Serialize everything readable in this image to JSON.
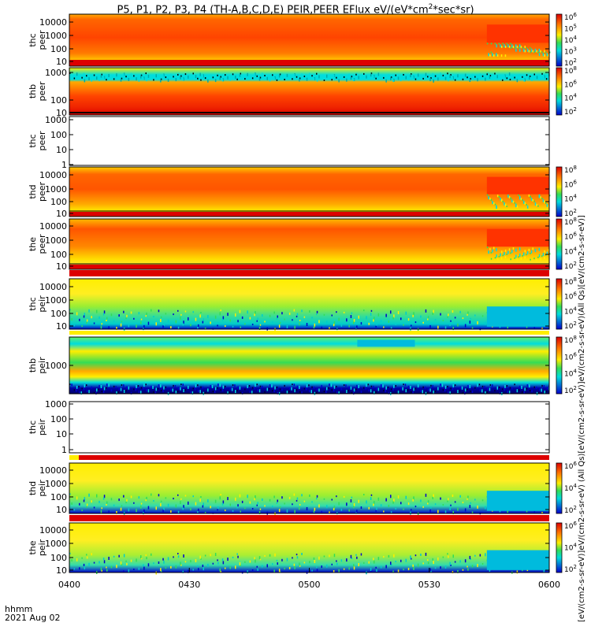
{
  "title": "P5, P1, P2, P3, P4 (TH-A,B,C,D,E) PEIR,PEER EFlux eV/(eV*cm",
  "title_sup": "2",
  "title_tail": "*sec*sr)",
  "footer": {
    "label": "hhmm",
    "date": "2021 Aug 02"
  },
  "units_label": "[eV/(cm2-s-sr-eV)]eV/(cm2-s-sr-eV) (All Qs)[eV/(cm2-s-sr-eV)]eV/(cm2-s-sr-eV)(All Qs)[eV/(cm2-s-sr-eV)]",
  "colors": {
    "red": "#dd0000",
    "orange": "#ff7700",
    "yellow": "#ffee00",
    "green": "#33dd55",
    "cyan": "#00dddd",
    "blue": "#0000cc"
  },
  "chart_data": {
    "type": "heatmap",
    "x_ticks": [
      "0400",
      "0430",
      "0500",
      "0530",
      "0600"
    ],
    "x_range": [
      "04:00",
      "06:00"
    ],
    "panels": [
      {
        "label": [
          "thc",
          "peer"
        ],
        "y_ticks": [
          "10000",
          "1000",
          "100",
          "10"
        ],
        "colorbar_ticks": [
          "10^6",
          "10^5",
          "10^4",
          "10^3",
          "10^2"
        ],
        "empty": false
      },
      {
        "label": [
          "thb",
          "peer"
        ],
        "y_ticks": [
          "1000",
          "100",
          "10"
        ],
        "colorbar_ticks": [
          "10^8",
          "10^6",
          "10^4",
          "10^2"
        ],
        "empty": false
      },
      {
        "label": [
          "thc",
          "peer"
        ],
        "y_ticks": [
          "1000",
          "100",
          "10",
          "1"
        ],
        "colorbar_ticks": [],
        "empty": true
      },
      {
        "label": [
          "thd",
          "peer"
        ],
        "y_ticks": [
          "10000",
          "1000",
          "100",
          "10"
        ],
        "colorbar_ticks": [
          "10^8",
          "10^6",
          "10^4",
          "10^2"
        ],
        "empty": false
      },
      {
        "label": [
          "the",
          "peer"
        ],
        "y_ticks": [
          "10000",
          "1000",
          "100",
          "10"
        ],
        "colorbar_ticks": [
          "10^8",
          "10^6",
          "10^4",
          "10^2"
        ],
        "empty": false
      },
      {
        "label": [
          "thc",
          "peir"
        ],
        "y_ticks": [
          "10000",
          "1000",
          "100",
          "10"
        ],
        "colorbar_ticks": [
          "10^8",
          "10^6",
          "10^4",
          "10^2"
        ],
        "empty": false
      },
      {
        "label": [
          "thb",
          "peir"
        ],
        "y_ticks": [
          "1000"
        ],
        "colorbar_ticks": [
          "10^8",
          "10^6",
          "10^4",
          "10^2"
        ],
        "empty": false
      },
      {
        "label": [
          "thc",
          "peir"
        ],
        "y_ticks": [
          "1000",
          "100",
          "10",
          "1"
        ],
        "colorbar_ticks": [],
        "empty": true
      },
      {
        "label": [
          "thd",
          "peir"
        ],
        "y_ticks": [
          "10000",
          "1000",
          "100",
          "10"
        ],
        "colorbar_ticks": [
          "10^6",
          "10^4",
          "10^2"
        ],
        "empty": false
      },
      {
        "label": [
          "the",
          "peir"
        ],
        "y_ticks": [
          "10000",
          "1000",
          "100",
          "10"
        ],
        "colorbar_ticks": [
          "10^6",
          "10^4",
          "10^2"
        ],
        "empty": false
      }
    ]
  }
}
